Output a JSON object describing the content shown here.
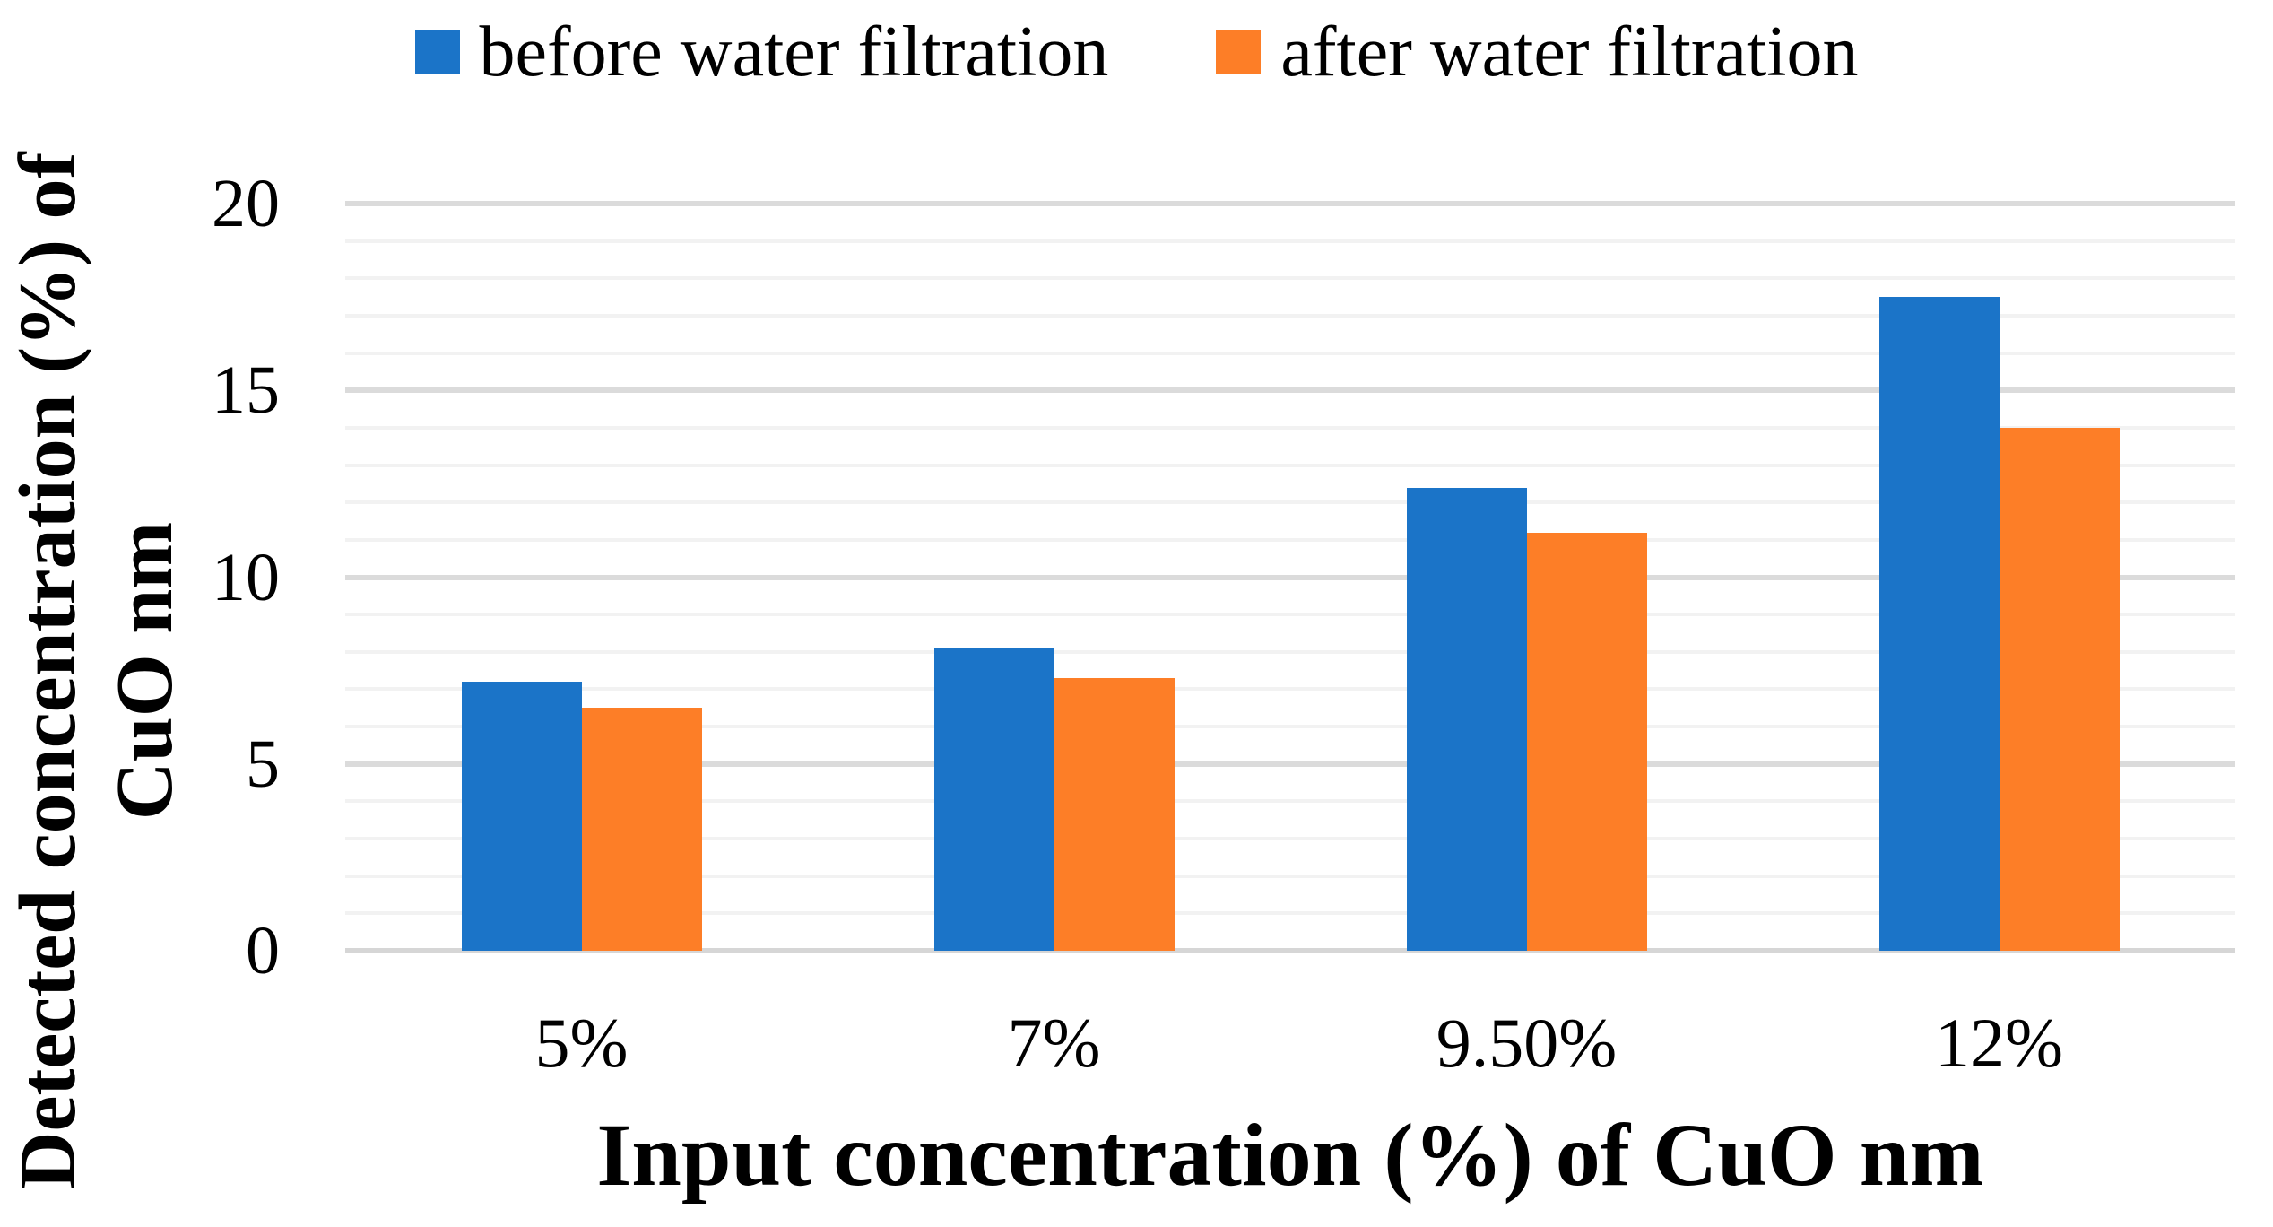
{
  "figure": {
    "background": "#ffffff",
    "text_color": "#000000"
  },
  "chart_data": {
    "type": "bar",
    "title": "",
    "categories": [
      "5%",
      "7%",
      "9.50%",
      "12%"
    ],
    "series": [
      {
        "name": "before water filtration",
        "color": "#1B74C8",
        "values": [
          7.2,
          8.1,
          12.4,
          17.5
        ]
      },
      {
        "name": "after water filtration",
        "color": "#FD7E27",
        "values": [
          6.5,
          7.3,
          11.2,
          14
        ]
      }
    ],
    "xlabel": "Input concentration (%) of CuO nm",
    "ylabel": "Detected concentration (%) of CuO nm",
    "ylabel_lines": [
      "Detected concentration (%) of",
      "CuO nm"
    ],
    "ylim": [
      0,
      20
    ],
    "yticks": [
      0,
      5,
      10,
      15,
      20
    ],
    "minor_grid_unit": 1,
    "grid": "horizontal",
    "legend_position": "top-center",
    "colors": {
      "major_gridline": "#DBDBDB",
      "minor_gridline": "#F2F2F2",
      "axis_line": "#D6D6D6"
    }
  }
}
